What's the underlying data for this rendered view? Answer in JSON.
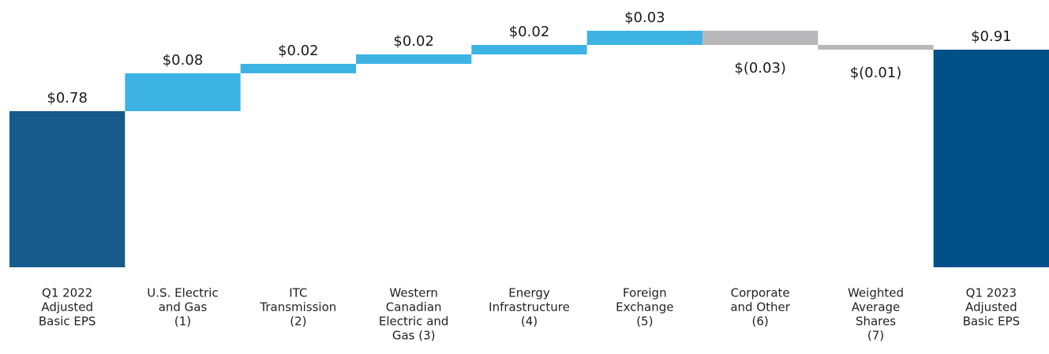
{
  "chart_data": {
    "type": "waterfall",
    "categories": [
      [
        "Q1 2022",
        "Adjusted",
        "Basic EPS"
      ],
      [
        "U.S. Electric",
        "and Gas",
        "(1)"
      ],
      [
        "ITC",
        "Transmission",
        "(2)"
      ],
      [
        "Western",
        "Canadian",
        "Electric and",
        "Gas (3)"
      ],
      [
        "Energy",
        "Infrastructure",
        "(4)"
      ],
      [
        "Foreign",
        "Exchange",
        "(5)"
      ],
      [
        "Corporate",
        "and Other",
        "(6)"
      ],
      [
        "Weighted",
        "Average",
        "Shares",
        "(7)"
      ],
      [
        "Q1 2023",
        "Adjusted",
        "Basic EPS"
      ]
    ],
    "values": [
      0.78,
      0.08,
      0.02,
      0.02,
      0.02,
      0.03,
      -0.03,
      -0.01,
      0.91
    ],
    "value_labels": [
      "$0.78",
      "$0.08",
      "$0.02",
      "$0.02",
      "$0.02",
      "$0.03",
      "$(0.03)",
      "$(0.01)",
      "$0.91"
    ],
    "measure": [
      "total",
      "relative",
      "relative",
      "relative",
      "relative",
      "relative",
      "relative",
      "relative",
      "total"
    ],
    "colors": [
      "#155a8a",
      "#3db3e3",
      "#3db3e3",
      "#3db3e3",
      "#3db3e3",
      "#3db3e3",
      "#b8b8bb",
      "#b8b8bb",
      "#00518a"
    ],
    "ylim": [
      0.45,
      1.0
    ]
  }
}
